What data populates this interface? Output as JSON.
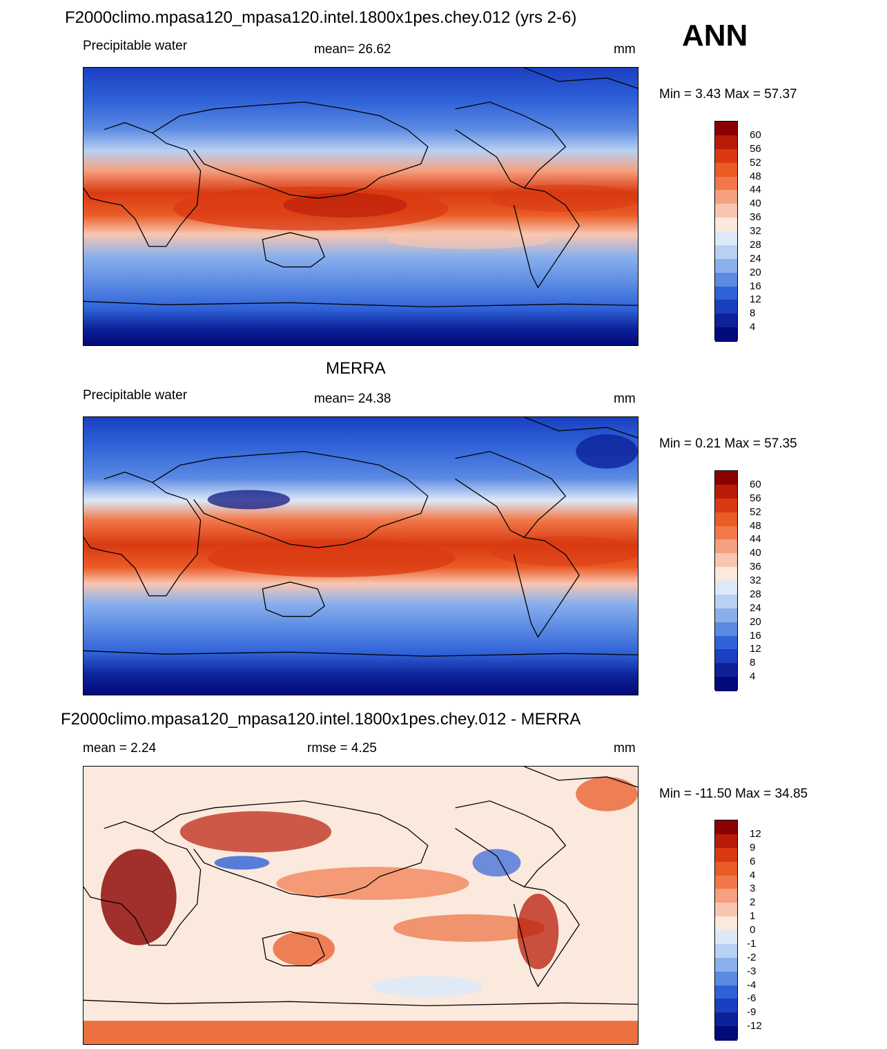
{
  "header": {
    "title": "F2000climo.mpasa120_mpasa120.intel.1800x1pes.chey.012 (yrs 2-6)",
    "season": "ANN"
  },
  "panels": [
    {
      "title": "",
      "left_label": "Precipitable water",
      "center_label": "mean=  26.62",
      "units": "mm",
      "minmax": "Min =   3.43 Max =  57.37",
      "colorbar_ticks": [
        "60",
        "56",
        "52",
        "48",
        "44",
        "40",
        "36",
        "32",
        "28",
        "24",
        "20",
        "16",
        "12",
        "8",
        "4"
      ],
      "colorbar_colors": [
        "#8b0000",
        "#b81b08",
        "#d93a12",
        "#ea5b26",
        "#f2784a",
        "#f5a07f",
        "#f8c6b0",
        "#fbe9dd",
        "#dde9f8",
        "#b8d0f3",
        "#8ab0ec",
        "#5b8ae3",
        "#2f62d8",
        "#1b3fc1",
        "#0d2299",
        "#030a7a"
      ]
    },
    {
      "title": "MERRA",
      "left_label": "Precipitable water",
      "center_label": "mean=  24.38",
      "units": "mm",
      "minmax": "Min =   0.21 Max =  57.35",
      "colorbar_ticks": [
        "60",
        "56",
        "52",
        "48",
        "44",
        "40",
        "36",
        "32",
        "28",
        "24",
        "20",
        "16",
        "12",
        "8",
        "4"
      ],
      "colorbar_colors": [
        "#8b0000",
        "#b81b08",
        "#d93a12",
        "#ea5b26",
        "#f2784a",
        "#f5a07f",
        "#f8c6b0",
        "#fbe9dd",
        "#dde9f8",
        "#b8d0f3",
        "#8ab0ec",
        "#5b8ae3",
        "#2f62d8",
        "#1b3fc1",
        "#0d2299",
        "#030a7a"
      ]
    },
    {
      "title": "F2000climo.mpasa120_mpasa120.intel.1800x1pes.chey.012 - MERRA",
      "left_label": "mean =   2.24",
      "center_label": "rmse =   4.25",
      "units": "mm",
      "minmax": "Min = -11.50 Max =  34.85",
      "colorbar_ticks": [
        "12",
        "9",
        "6",
        "4",
        "3",
        "2",
        "1",
        "0",
        "-1",
        "-2",
        "-3",
        "-4",
        "-6",
        "-9",
        "-12"
      ],
      "colorbar_colors": [
        "#8b0000",
        "#b81b08",
        "#d93a12",
        "#ea5b26",
        "#f2784a",
        "#f5a07f",
        "#f8c6b0",
        "#fbe9dd",
        "#dde9f8",
        "#b8d0f3",
        "#8ab0ec",
        "#5b8ae3",
        "#2f62d8",
        "#1b3fc1",
        "#0d2299",
        "#030a7a"
      ]
    }
  ]
}
